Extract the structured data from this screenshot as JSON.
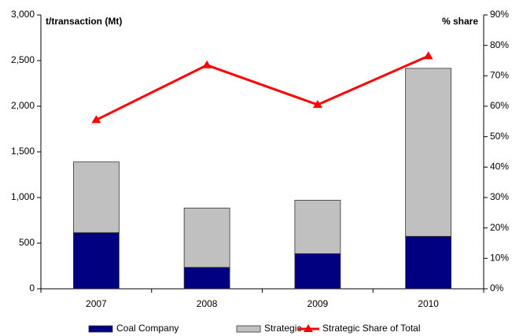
{
  "chart_data": {
    "type": "bar",
    "y_label": "t/transaction (Mt)",
    "y2_label": "% share",
    "categories": [
      "2007",
      "2008",
      "2009",
      "2010"
    ],
    "series": [
      {
        "name": "Coal Company",
        "color": "#000080",
        "values": [
          615,
          235,
          385,
          575
        ]
      },
      {
        "name": "Strategic",
        "color": "#c0c0c0",
        "values": [
          775,
          650,
          585,
          1840
        ]
      },
      {
        "name": "Strategic Share of Total",
        "color": "#ff0000",
        "type": "line",
        "axis": "y2",
        "values": [
          55.5,
          73.5,
          60.5,
          76.5
        ]
      }
    ],
    "stacked": true,
    "ylim": [
      0,
      3000
    ],
    "yticks": [
      0,
      {
        "value": 500,
        "label": "500"
      },
      {
        "value": 1000,
        "label": "1,000"
      },
      {
        "value": 1500,
        "label": "1,500"
      },
      {
        "value": 2000,
        "label": "2,000"
      },
      {
        "value": 2500,
        "label": "2,500"
      },
      {
        "value": 3000,
        "label": "3,000"
      }
    ],
    "y2lim": [
      0,
      90
    ],
    "y2ticks": [
      {
        "value": 0,
        "label": "0%"
      },
      {
        "value": 10,
        "label": "10%"
      },
      {
        "value": 20,
        "label": "20%"
      },
      {
        "value": 30,
        "label": "30%"
      },
      {
        "value": 40,
        "label": "40%"
      },
      {
        "value": 50,
        "label": "50%"
      },
      {
        "value": 60,
        "label": "60%"
      },
      {
        "value": 70,
        "label": "70%"
      },
      {
        "value": 80,
        "label": "80%"
      },
      {
        "value": 90,
        "label": "90%"
      }
    ],
    "grid": false,
    "legend": "bottom"
  }
}
